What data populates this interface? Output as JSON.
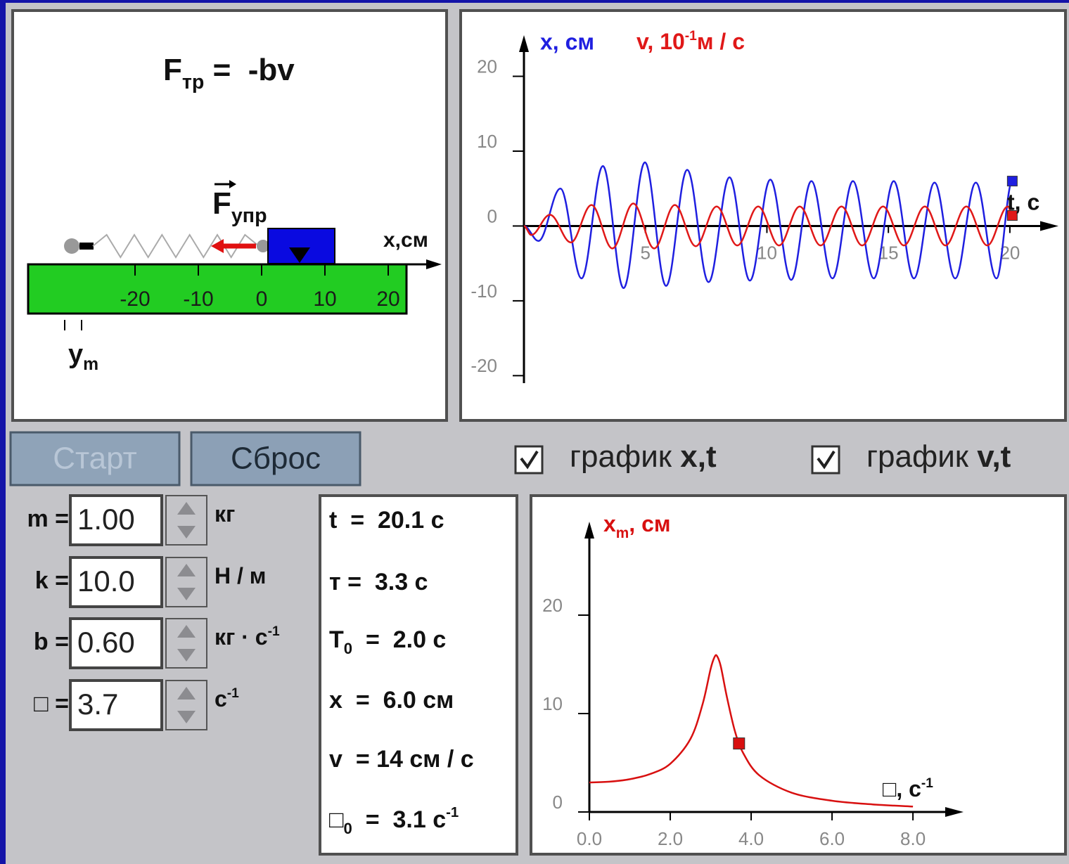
{
  "mechanism": {
    "formula": {
      "main": "F",
      "sub": "тр",
      "rest": " =  -bv"
    },
    "force_label": {
      "main": "F",
      "sub": "упр"
    },
    "axis_label": "x,см",
    "ruler_ticks": [
      -20,
      -10,
      0,
      10,
      20
    ],
    "ym_label": {
      "main": "y",
      "sub": "m"
    },
    "block_position": 6.0
  },
  "buttons": {
    "start": "Старт",
    "reset": "Сброс"
  },
  "checkboxes": [
    {
      "text": "график ",
      "bold": "x,t",
      "checked": true
    },
    {
      "text": "график ",
      "bold": "v,t",
      "checked": true
    }
  ],
  "parameters": [
    {
      "name": "m =",
      "value": "1.00",
      "unit": "кг"
    },
    {
      "name": "k =",
      "value": "10.0",
      "unit": "Н / м"
    },
    {
      "name": "b =",
      "value": "0.60",
      "unit": "кг · с",
      "unit_sup": "-1"
    },
    {
      "name": "□ =",
      "value": "3.7",
      "unit": "с",
      "unit_sup": "-1"
    }
  ],
  "readouts": [
    {
      "label": "t",
      "text": "  =  20.1 с"
    },
    {
      "label": "т",
      "text": " =  3.3 с"
    },
    {
      "label": "T",
      "sub": "0",
      "text": "  =  2.0 с"
    },
    {
      "label": "x",
      "text": "  =  6.0 см"
    },
    {
      "label": "v",
      "text": "  = 14 см / с"
    },
    {
      "label": "□",
      "sub": "0",
      "text": "  =  3.1 с",
      "sup": "-1"
    }
  ],
  "osc_chart": {
    "type": "line",
    "x_label": "x, см",
    "v_label": {
      "main": "v, 10",
      "sup": "-1",
      "unit": "м / с"
    },
    "t_label": "t, c",
    "xlim": [
      0,
      22
    ],
    "ylim": [
      -21,
      25.5
    ],
    "xticks": [
      5,
      10,
      15,
      20
    ],
    "yticks": [
      -20,
      -10,
      0,
      10,
      20
    ],
    "series": [
      {
        "color": "#1f1fe0",
        "x": [
          0,
          0.6,
          1.5,
          2.37,
          3.25,
          4.1,
          4.98,
          5.85,
          6.72,
          7.6,
          8.46,
          9.3,
          10.14,
          11.0,
          11.83,
          12.7,
          13.54,
          14.4,
          15.22,
          16.05,
          16.9,
          17.75,
          18.6,
          19.45,
          20.1
        ],
        "values": [
          0,
          -2,
          5,
          -7,
          8,
          -8.3,
          8.5,
          -8,
          7.5,
          -7.5,
          6.5,
          -7.3,
          6.2,
          -7.2,
          6,
          -7,
          6,
          -7,
          6,
          -7,
          5.8,
          -7,
          5.8,
          -7,
          6.0
        ]
      },
      {
        "color": "#e01818",
        "x": [
          0,
          0.3,
          1.07,
          1.93,
          2.78,
          3.64,
          4.5,
          5.36,
          6.21,
          7.07,
          7.93,
          8.78,
          9.64,
          10.5,
          11.35,
          12.21,
          13.07,
          13.92,
          14.78,
          15.64,
          16.5,
          17.35,
          18.21,
          19.07,
          19.92,
          20.1
        ],
        "values": [
          0,
          -1.2,
          1.5,
          -2.2,
          2.8,
          -3,
          3,
          -3,
          2.8,
          -2.7,
          2.6,
          -2.6,
          2.6,
          -2.6,
          2.6,
          -2.6,
          2.6,
          -2.6,
          2.6,
          -2.6,
          2.6,
          -2.6,
          2.6,
          -2.6,
          2.6,
          1.4
        ]
      }
    ]
  },
  "resonance_chart": {
    "type": "line",
    "y_label": {
      "main": "x",
      "sub": "m",
      "rest": ", см"
    },
    "x_label": {
      "main": "□, с",
      "sup": "-1"
    },
    "xlim": [
      0,
      9.25
    ],
    "ylim": [
      0,
      29.5
    ],
    "xticks": [
      {
        "value": 0,
        "label": "0.0"
      },
      {
        "value": 2,
        "label": "2.0"
      },
      {
        "value": 4,
        "label": "4.0"
      },
      {
        "value": 6,
        "label": "6.0"
      },
      {
        "value": 8,
        "label": "8.0"
      }
    ],
    "yticks": [
      0,
      10,
      20
    ],
    "color": "#d81010",
    "x": [
      0,
      0.5,
      1,
      1.5,
      2,
      2.5,
      2.8,
      3.0,
      3.1,
      3.16,
      3.25,
      3.4,
      3.6,
      3.8,
      4.2,
      5,
      6,
      7,
      8
    ],
    "values": [
      3.0,
      3.08,
      3.33,
      3.85,
      4.9,
      7.43,
      10.96,
      14.57,
      15.79,
      15.82,
      14.78,
      11.69,
      8.19,
      6.01,
      3.73,
      1.96,
      1.14,
      0.77,
      0.55
    ],
    "marker": {
      "x": 3.7,
      "value": 6.96
    }
  }
}
